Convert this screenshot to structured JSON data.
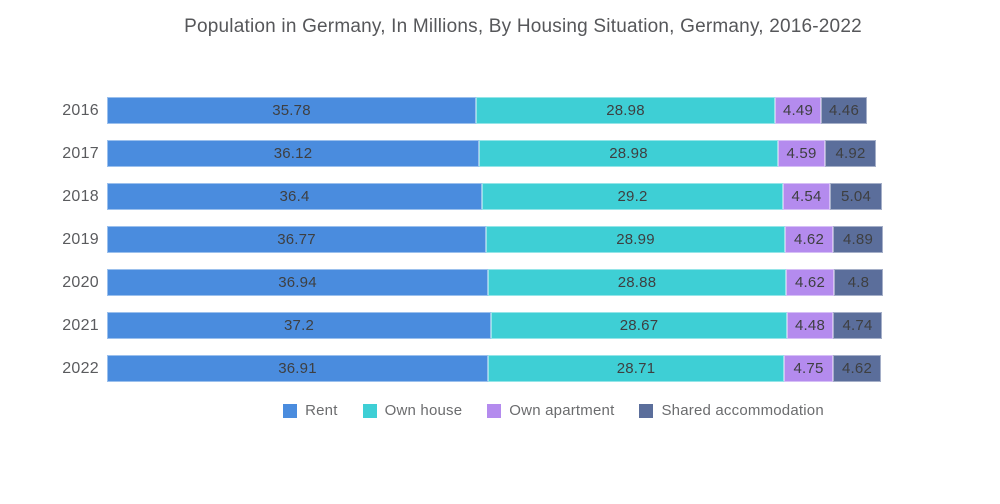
{
  "title": "Population in Germany, In Millions, By Housing Situation, Germany, 2016-2022",
  "chart_data": {
    "type": "bar",
    "orientation": "horizontal",
    "stacked": true,
    "title": "Population in Germany, In Millions, By Housing Situation, Germany, 2016-2022",
    "categories": [
      "2016",
      "2017",
      "2018",
      "2019",
      "2020",
      "2021",
      "2022"
    ],
    "series": [
      {
        "name": "Rent",
        "color": "#4a8cde",
        "values": [
          35.78,
          36.12,
          36.4,
          36.77,
          36.94,
          37.2,
          36.91
        ]
      },
      {
        "name": "Own house",
        "color": "#3ecfd5",
        "values": [
          28.98,
          28.98,
          29.2,
          28.99,
          28.88,
          28.67,
          28.71
        ]
      },
      {
        "name": "Own apartment",
        "color": "#b48bee",
        "values": [
          4.49,
          4.59,
          4.54,
          4.62,
          4.62,
          4.48,
          4.75
        ]
      },
      {
        "name": "Shared accommodation",
        "color": "#5b6e9b",
        "values": [
          4.46,
          4.92,
          5.04,
          4.89,
          4.8,
          4.74,
          4.62
        ]
      }
    ],
    "value_labels": true,
    "legend_position": "bottom",
    "xlabel": "",
    "ylabel": "",
    "xlim": [
      0,
      76
    ],
    "grid": false
  }
}
